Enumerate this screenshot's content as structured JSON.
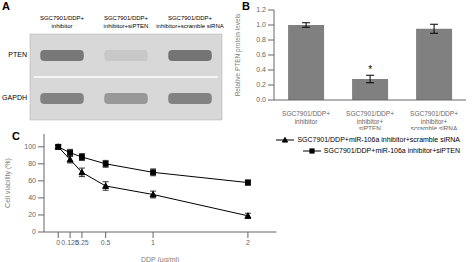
{
  "chart_data": [
    {
      "type": "blot",
      "title": "A",
      "categories": [
        "SGC7901/DDP+\ninhibitor",
        "SGC7901/DDP+\ninhibitor+siPTEN",
        "SGC7901/DDP+\ninhibitor+scramble siRNA"
      ],
      "series": [
        {
          "name": "PTEN",
          "colors": [
            "#787878",
            "#c8c8c8",
            "#747474"
          ]
        },
        {
          "name": "GAPDH",
          "colors": [
            "#828282",
            "#989898",
            "#828282"
          ]
        }
      ],
      "color": "#d8d8d8"
    },
    {
      "type": "bar",
      "title": "B",
      "categories": [
        "SGC7901/DDP+\ninhibitor",
        "SGC7901/DDP+\ninhibitor+siPTEN",
        "SGC7901/DDP+\ninhibitor+scramble siRNA"
      ],
      "values": [
        1.0,
        0.28,
        0.95
      ],
      "errors": [
        0.03,
        0.05,
        0.06
      ],
      "color": "#808080",
      "ylabel": "Relative PTEN protein levels",
      "ylim": [
        0,
        1.2
      ],
      "yticks": [
        {
          "value": 0,
          "label": "0.0"
        },
        0.2,
        0.4,
        0.6,
        0.8,
        {
          "value": 1,
          "label": "1.0"
        },
        1.2
      ],
      "annotations": [
        {
          "x": "SGC7901/DDP+\ninhibitor+siPTEN",
          "text": "*"
        }
      ]
    },
    {
      "type": "line",
      "title": "C",
      "x": [
        0,
        0.125,
        0.25,
        0.5,
        1,
        2
      ],
      "series": [
        {
          "name": "SGC7901/DDP+miR-106a inhibitor+scramble siRNA",
          "color": "#000000",
          "marker": "triangle",
          "values": [
            100,
            85,
            70,
            54,
            44,
            19
          ],
          "errors": [
            2,
            4,
            5,
            5,
            4,
            3
          ]
        },
        {
          "name": "SGC7901/DDP+miR-106a inhibitor+siPTEN",
          "color": "#000000",
          "marker": "square",
          "values": [
            100,
            93,
            88,
            80,
            70,
            58
          ],
          "errors": [
            2,
            4,
            4,
            4,
            4,
            3
          ]
        }
      ],
      "xlabel": "DDP (μg/ml)",
      "ylabel": "Cell viability (%)",
      "xlim": [
        -0.15,
        2.3
      ],
      "xticks": [
        0,
        0.125,
        0.25,
        0.5,
        1,
        2
      ],
      "ylim": [
        0,
        115
      ],
      "yticks": [
        0,
        20,
        40,
        60,
        80,
        100
      ],
      "legend": "upper right"
    }
  ]
}
